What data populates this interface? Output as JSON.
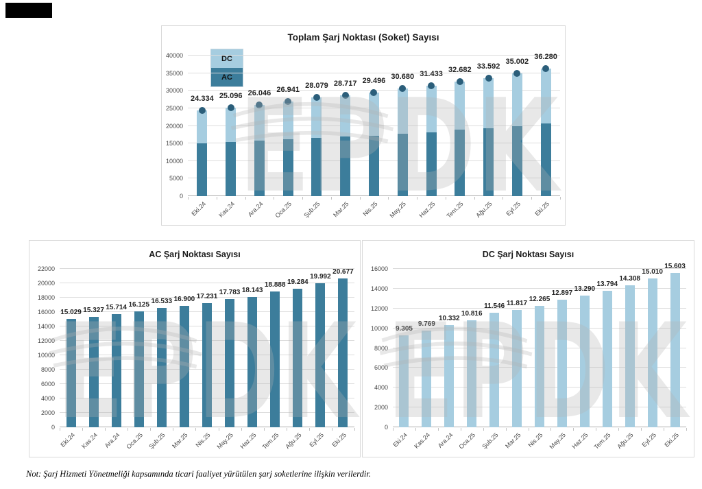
{
  "note": "Not: Şarj Hizmeti Yönetmeliği kapsamında ticari faaliyet yürütülen şarj soketlerine ilişkin verilerdir.",
  "colors": {
    "ac": "#3c7d9b",
    "dc": "#a6cde0",
    "marker": "#2b5e7a",
    "grid": "#dcdcdc",
    "axis": "#adadad",
    "panel_border": "#d8d8d8",
    "watermark": "#b3b3b3",
    "label_text": "#222222",
    "tick_text": "#474747"
  },
  "chart_data": [
    {
      "type": "bar",
      "stacked": true,
      "title": "Toplam Şarj Noktası (Soket) Sayısı",
      "legend": [
        {
          "label": "DC",
          "color": "#a6cde0"
        },
        {
          "label": "AC",
          "color": "#3c7d9b"
        }
      ],
      "legend_position": "upper-left",
      "grid": true,
      "categories": [
        "Eki.24",
        "Kas.24",
        "Ara.24",
        "Oca.25",
        "Şub.25",
        "Mar.25",
        "Nis.25",
        "May.25",
        "Haz.25",
        "Tem.25",
        "Ağu.25",
        "Eyl.25",
        "Eki.25"
      ],
      "series": [
        {
          "name": "AC",
          "color": "#3c7d9b",
          "values": [
            15029,
            15327,
            15714,
            16125,
            16533,
            16900,
            17231,
            17783,
            18143,
            18888,
            19284,
            19992,
            20677
          ]
        },
        {
          "name": "DC",
          "color": "#a6cde0",
          "values": [
            9305,
            9769,
            10332,
            10816,
            11546,
            11817,
            12265,
            12897,
            13290,
            13794,
            14308,
            15010,
            15603
          ]
        }
      ],
      "total_labels": [
        "24.334",
        "25.096",
        "26.046",
        "26.941",
        "28.079",
        "28.717",
        "29.496",
        "30.680",
        "31.433",
        "32.682",
        "33.592",
        "35.002",
        "36.280"
      ],
      "marker_color": "#2b5e7a",
      "xlabel": "",
      "ylabel": "",
      "ylim": [
        0,
        40000
      ],
      "yticks": [
        0,
        5000,
        10000,
        15000,
        20000,
        25000,
        30000,
        35000,
        40000
      ]
    },
    {
      "type": "bar",
      "stacked": false,
      "title": "AC Şarj Noktası Sayısı",
      "bar_color": "#3c7d9b",
      "grid": true,
      "categories": [
        "Eki.24",
        "Kas.24",
        "Ara.24",
        "Oca.25",
        "Şub.25",
        "Mar.25",
        "Nis.25",
        "May.25",
        "Haz.25",
        "Tem.25",
        "Ağu.25",
        "Eyl.25",
        "Eki.25"
      ],
      "values": [
        15029,
        15327,
        15714,
        16125,
        16533,
        16900,
        17231,
        17783,
        18143,
        18888,
        19284,
        19992,
        20677
      ],
      "value_labels": [
        "15.029",
        "15.327",
        "15.714",
        "16.125",
        "16.533",
        "16.900",
        "17.231",
        "17.783",
        "18.143",
        "18.888",
        "19.284",
        "19.992",
        "20.677"
      ],
      "xlabel": "",
      "ylabel": "",
      "ylim": [
        0,
        22000
      ],
      "yticks": [
        0,
        2000,
        4000,
        6000,
        8000,
        10000,
        12000,
        14000,
        16000,
        18000,
        20000,
        22000
      ]
    },
    {
      "type": "bar",
      "stacked": false,
      "title": "DC Şarj Noktası Sayısı",
      "bar_color": "#a6cde0",
      "grid": true,
      "categories": [
        "Eki.24",
        "Kas.24",
        "Ara.24",
        "Oca.25",
        "Şub.25",
        "Mar.25",
        "Nis.25",
        "May.25",
        "Haz.25",
        "Tem.25",
        "Ağu.25",
        "Eyl.25",
        "Eki.25"
      ],
      "values": [
        9305,
        9769,
        10332,
        10816,
        11546,
        11817,
        12265,
        12897,
        13290,
        13794,
        14308,
        15010,
        15603
      ],
      "value_labels": [
        "9.305",
        "9.769",
        "10.332",
        "10.816",
        "11.546",
        "11.817",
        "12.265",
        "12.897",
        "13.290",
        "13.794",
        "14.308",
        "15.010",
        "15.603"
      ],
      "xlabel": "",
      "ylabel": "",
      "ylim": [
        0,
        16000
      ],
      "yticks": [
        0,
        2000,
        4000,
        6000,
        8000,
        10000,
        12000,
        14000,
        16000
      ]
    }
  ],
  "watermark_text": "EPDK"
}
